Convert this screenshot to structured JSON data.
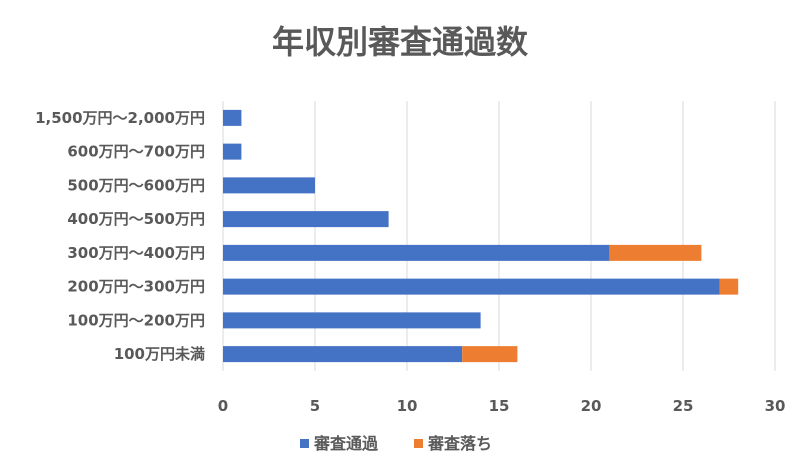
{
  "chart_data": {
    "type": "bar",
    "orientation": "horizontal",
    "stacked": true,
    "title": "年収別審査通過数",
    "categories": [
      "1,500万円～2,000万円",
      "600万円～700万円",
      "500万円～600万円",
      "400万円～500万円",
      "300万円～400万円",
      "200万円～300万円",
      "100万円～200万円",
      "100万円未満"
    ],
    "series": [
      {
        "name": "審査通過",
        "color": "#4472C4",
        "values": [
          1,
          1,
          5,
          9,
          21,
          27,
          14,
          13
        ]
      },
      {
        "name": "審査落ち",
        "color": "#ED7D31",
        "values": [
          0,
          0,
          0,
          0,
          5,
          1,
          0,
          3
        ]
      }
    ],
    "xlim": [
      0,
      30
    ],
    "xticks": [
      0,
      5,
      10,
      15,
      20,
      25,
      30
    ],
    "grid": "vertical",
    "legend": "bottom-center"
  }
}
